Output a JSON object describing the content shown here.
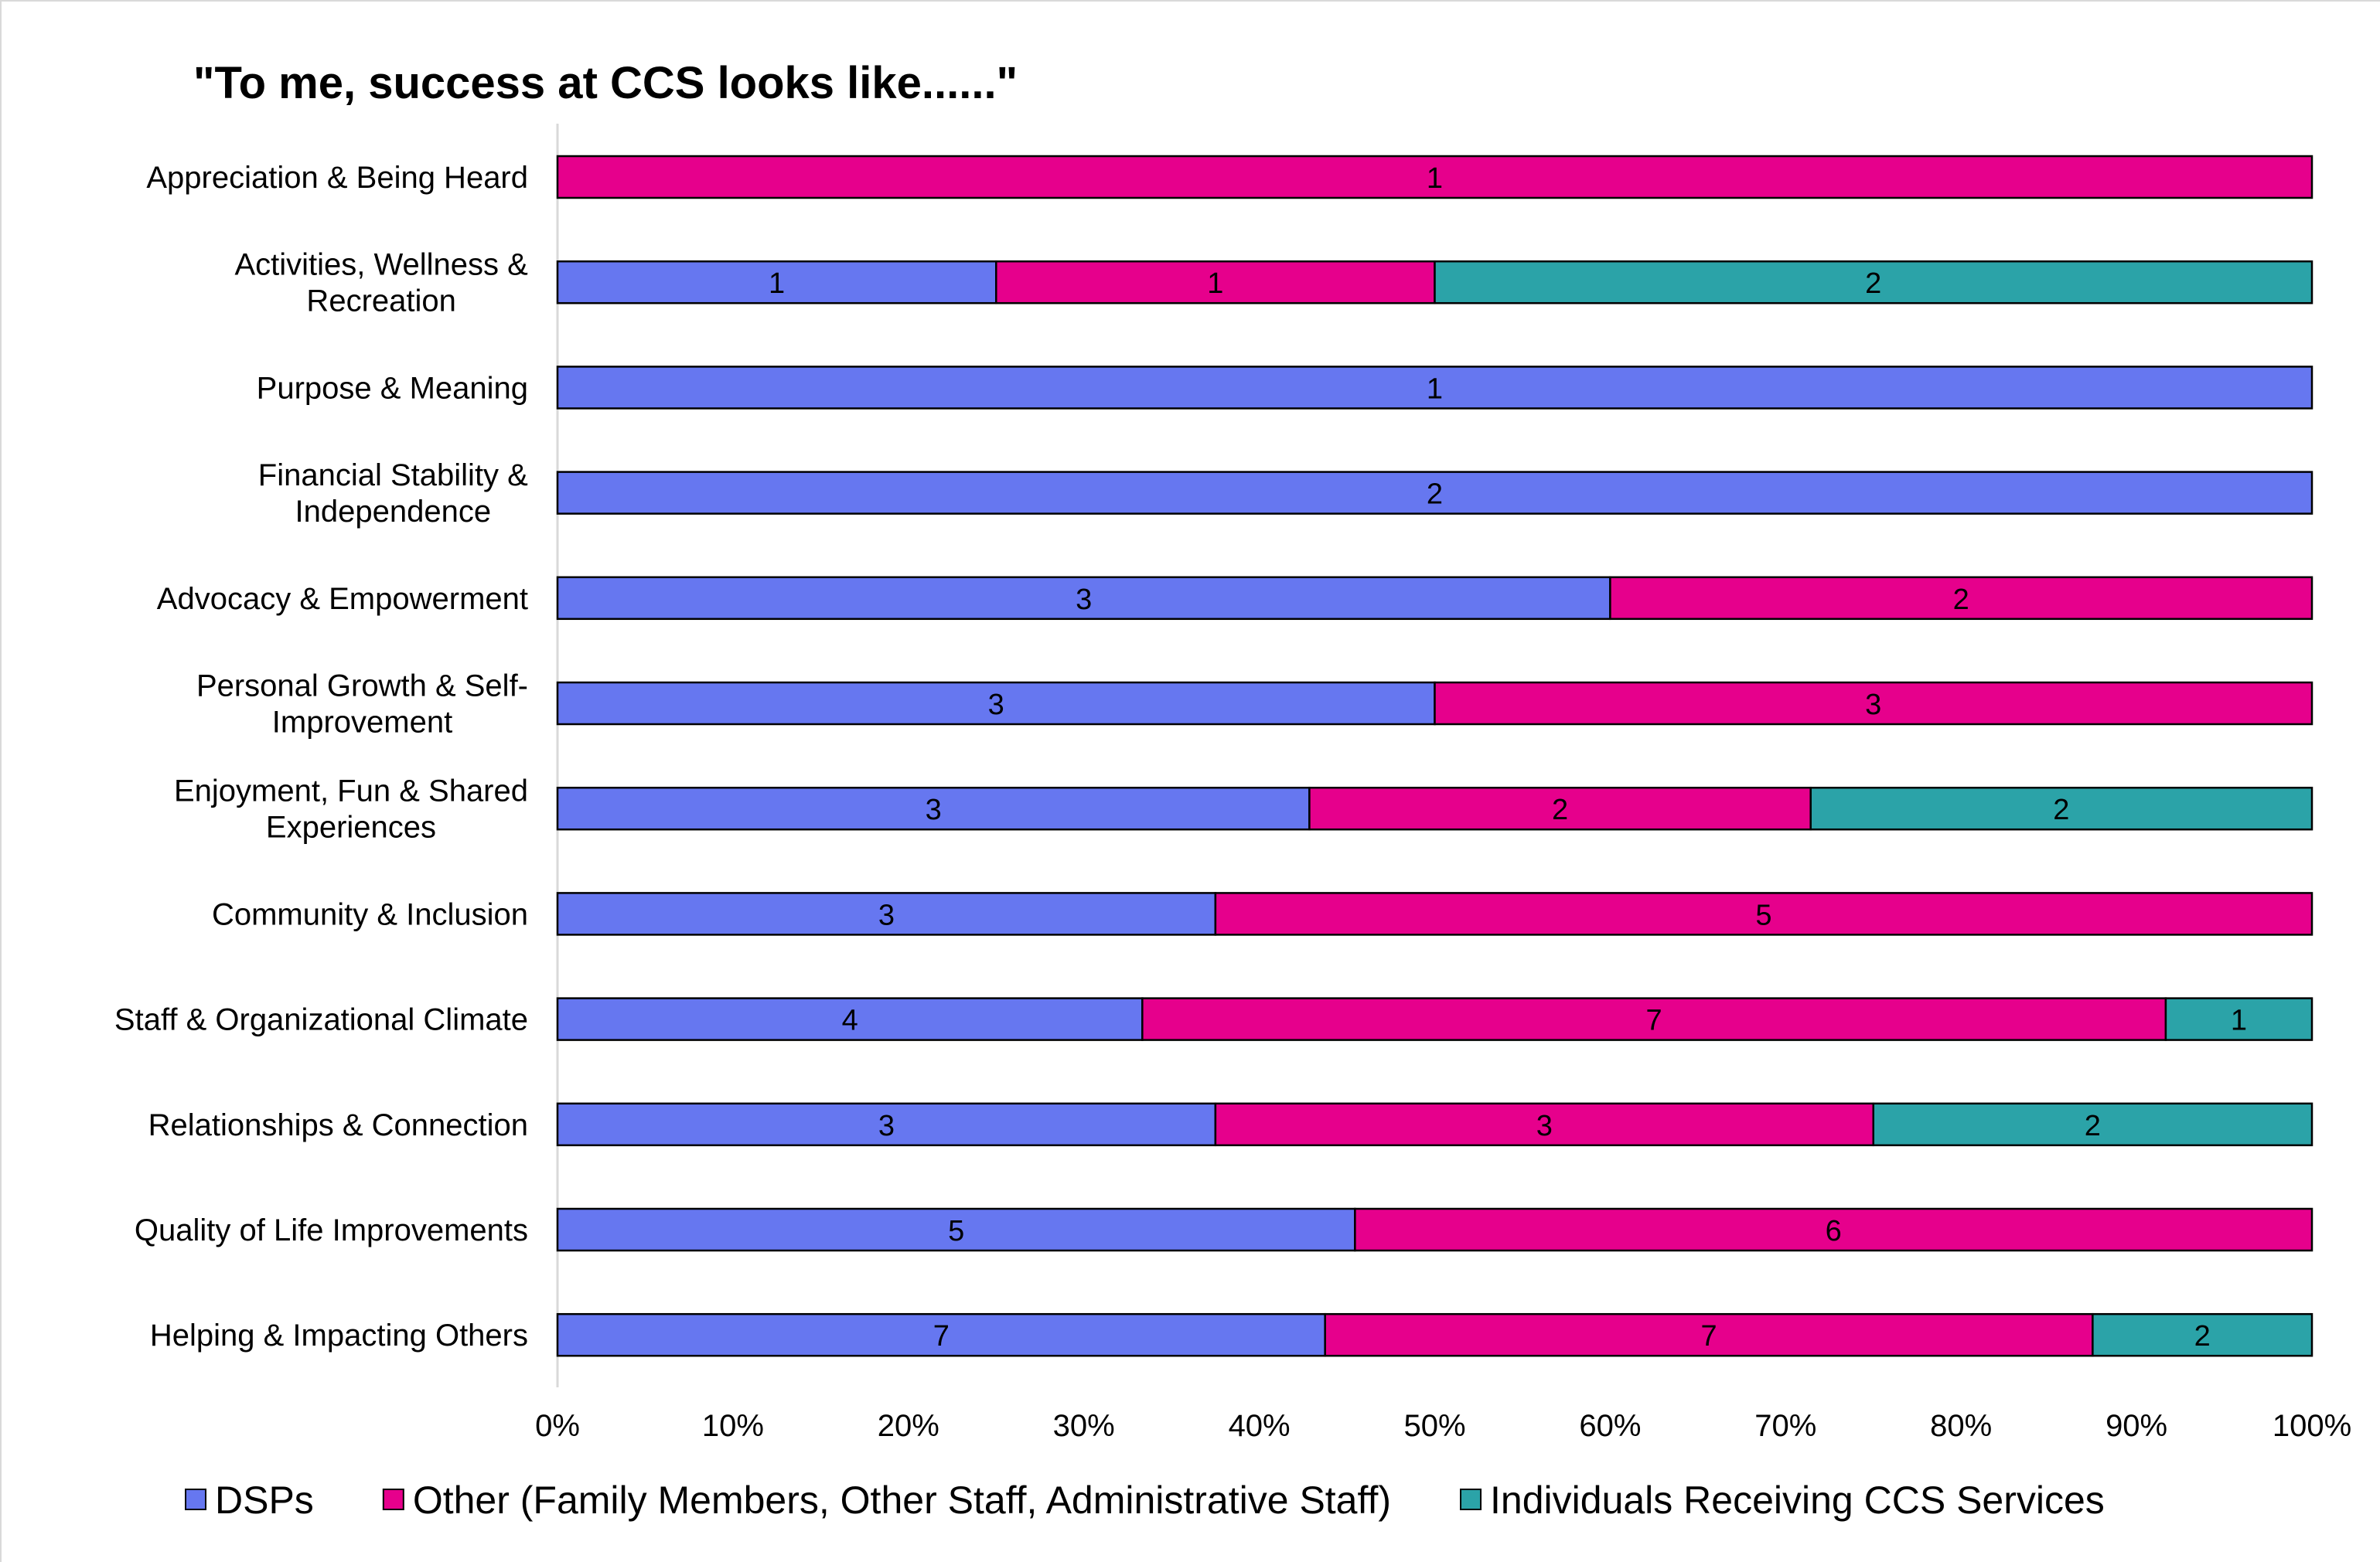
{
  "chart_data": {
    "type": "bar",
    "orientation": "horizontal",
    "stacking": "percent",
    "title": "\"To me, success at CCS looks like......\"",
    "categories": [
      [
        "Appreciation & Being Heard"
      ],
      [
        "Activities, Wellness &",
        "Recreation"
      ],
      [
        "Purpose & Meaning"
      ],
      [
        "Financial Stability &",
        "Independence"
      ],
      [
        "Advocacy & Empowerment"
      ],
      [
        "Personal Growth & Self-",
        "Improvement"
      ],
      [
        "Enjoyment, Fun & Shared",
        "Experiences"
      ],
      [
        "Community & Inclusion"
      ],
      [
        "Staff & Organizational Climate"
      ],
      [
        "Relationships & Connection"
      ],
      [
        "Quality of Life Improvements"
      ],
      [
        "Helping & Impacting Others"
      ]
    ],
    "series": [
      {
        "name": "DSPs",
        "color": "#6677f0",
        "values": [
          0,
          1,
          1,
          2,
          3,
          3,
          3,
          3,
          4,
          3,
          5,
          7
        ]
      },
      {
        "name": "Other (Family Members, Other Staff, Administrative Staff)",
        "color": "#e6008c",
        "values": [
          1,
          1,
          0,
          0,
          2,
          3,
          2,
          5,
          7,
          3,
          6,
          7
        ]
      },
      {
        "name": "Individuals Receiving CCS Services",
        "color": "#2ba3a8",
        "values": [
          0,
          2,
          0,
          0,
          0,
          0,
          2,
          0,
          1,
          2,
          0,
          2
        ]
      }
    ],
    "xticks": [
      "0%",
      "10%",
      "20%",
      "30%",
      "40%",
      "50%",
      "60%",
      "70%",
      "80%",
      "90%",
      "100%"
    ],
    "xlim": [
      0,
      100
    ],
    "grid": false,
    "legend_position": "bottom"
  }
}
